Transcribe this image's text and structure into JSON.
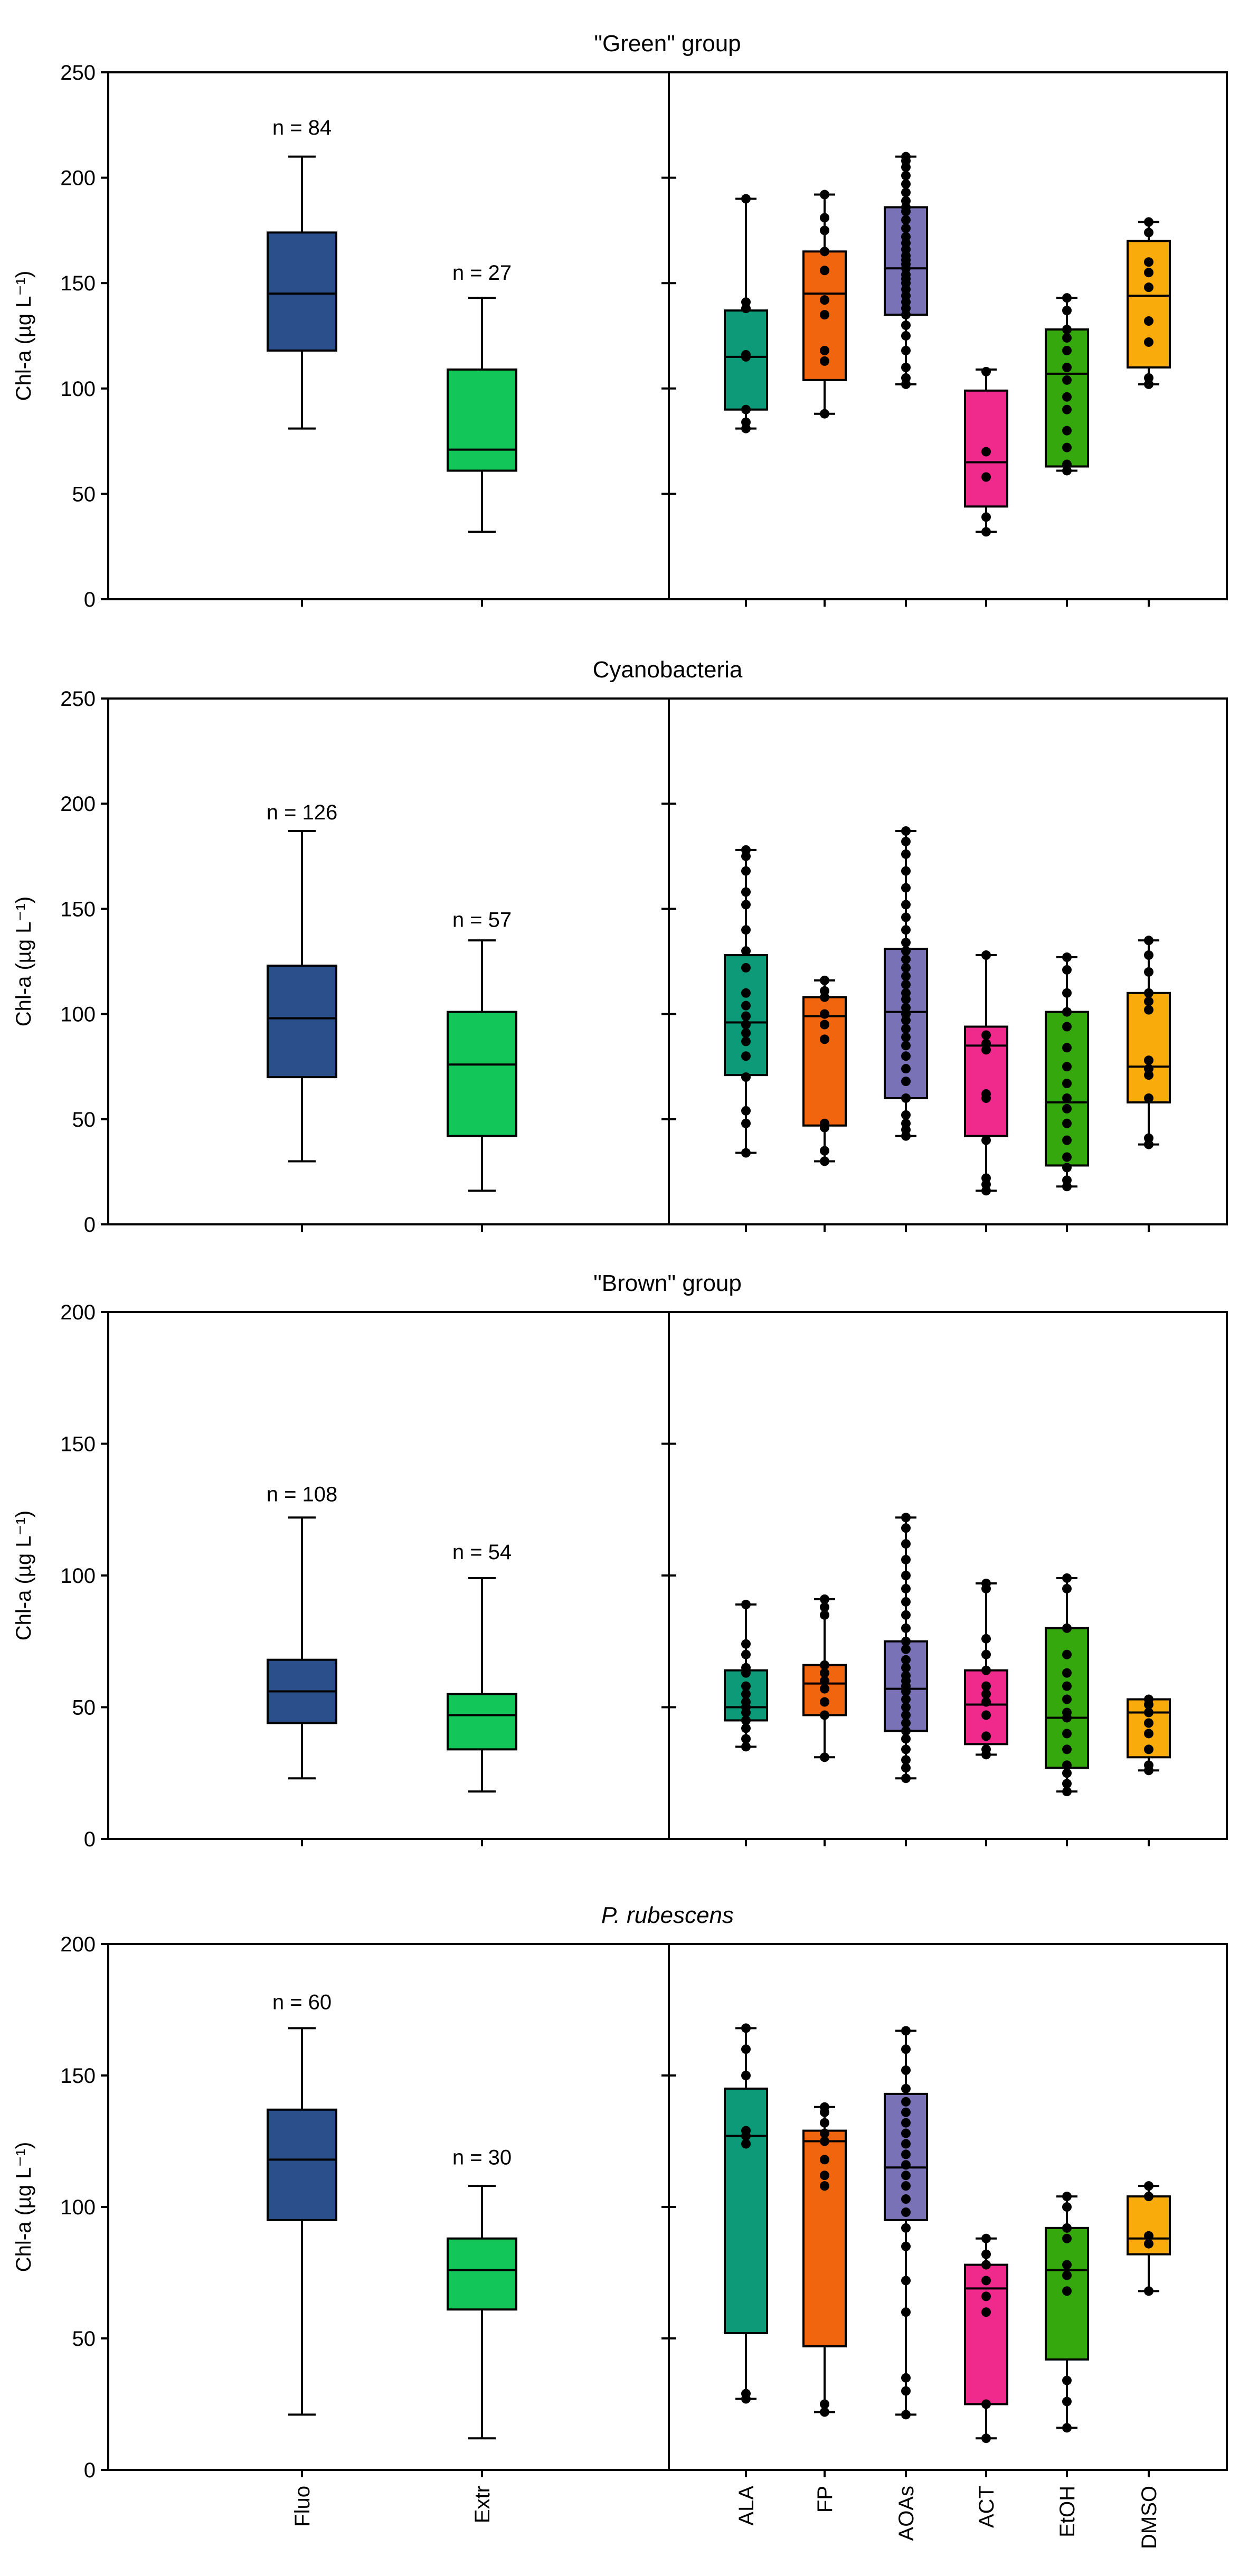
{
  "chart_data": {
    "type": "boxplot",
    "ylabel": "Chl-a (µg L⁻¹)",
    "x_categories_left": [
      "Fluo",
      "Extr"
    ],
    "x_categories_right": [
      "ALA",
      "FP",
      "AOAs",
      "ACT",
      "EtOH",
      "DMSO"
    ],
    "colors": {
      "Fluo": "#2b4f8a",
      "Extr": "#12c65a",
      "ALA": "#0c9a78",
      "FP": "#f2650f",
      "AOAs": "#7a72b6",
      "ACT": "#f02a8c",
      "EtOH": "#35a80d",
      "DMSO": "#f9ab0c"
    },
    "panels": [
      {
        "title": "\"Green\" group",
        "italic": false,
        "ylim": [
          0,
          250
        ],
        "yticks": [
          0,
          50,
          100,
          150,
          200,
          250
        ],
        "summary": [
          {
            "cat": "Fluo",
            "min": 81,
            "q1": 118,
            "median": 145,
            "q3": 174,
            "max": 210,
            "n_label": "n = 84",
            "n_y": 224
          },
          {
            "cat": "Extr",
            "min": 32,
            "q1": 61,
            "median": 71,
            "q3": 109,
            "max": 143,
            "n_label": "n = 27",
            "n_y": 155
          }
        ],
        "methods": [
          {
            "cat": "ALA",
            "min": 81,
            "q1": 90,
            "median": 115,
            "q3": 137,
            "max": 190,
            "points": [
              81,
              84,
              90,
              115,
              116,
              138,
              141,
              190
            ]
          },
          {
            "cat": "FP",
            "min": 88,
            "q1": 104,
            "median": 145,
            "q3": 165,
            "max": 192,
            "points": [
              88,
              113,
              118,
              135,
              142,
              156,
              165,
              175,
              181,
              192
            ]
          },
          {
            "cat": "AOAs",
            "min": 102,
            "q1": 135,
            "median": 157,
            "q3": 186,
            "max": 210,
            "points": [
              102,
              105,
              110,
              118,
              125,
              130,
              135,
              138,
              141,
              144,
              147,
              150,
              152,
              154,
              157,
              159,
              161,
              163,
              166,
              169,
              172,
              176,
              180,
              184,
              186,
              189,
              193,
              197,
              201,
              205,
              208,
              210
            ]
          },
          {
            "cat": "ACT",
            "min": 32,
            "q1": 44,
            "median": 65,
            "q3": 99,
            "max": 109,
            "points": [
              32,
              39,
              58,
              70,
              108
            ]
          },
          {
            "cat": "EtOH",
            "min": 61,
            "q1": 63,
            "median": 107,
            "q3": 128,
            "max": 143,
            "points": [
              61,
              64,
              72,
              80,
              90,
              96,
              104,
              110,
              118,
              124,
              128,
              137,
              143
            ]
          },
          {
            "cat": "DMSO",
            "min": 102,
            "q1": 110,
            "median": 144,
            "q3": 170,
            "max": 179,
            "points": [
              102,
              105,
              122,
              132,
              148,
              155,
              160,
              174,
              179
            ]
          }
        ]
      },
      {
        "title": "Cyanobacteria",
        "italic": false,
        "ylim": [
          0,
          250
        ],
        "yticks": [
          0,
          50,
          100,
          150,
          200,
          250
        ],
        "summary": [
          {
            "cat": "Fluo",
            "min": 30,
            "q1": 70,
            "median": 98,
            "q3": 123,
            "max": 187,
            "n_label": "n = 126",
            "n_y": 196
          },
          {
            "cat": "Extr",
            "min": 16,
            "q1": 42,
            "median": 76,
            "q3": 101,
            "max": 135,
            "n_label": "n = 57",
            "n_y": 145
          }
        ],
        "methods": [
          {
            "cat": "ALA",
            "min": 34,
            "q1": 71,
            "median": 96,
            "q3": 128,
            "max": 178,
            "points": [
              34,
              48,
              54,
              70,
              80,
              87,
              91,
              95,
              99,
              104,
              110,
              122,
              130,
              140,
              152,
              158,
              168,
              175,
              178
            ]
          },
          {
            "cat": "FP",
            "min": 30,
            "q1": 47,
            "median": 99,
            "q3": 108,
            "max": 116,
            "points": [
              30,
              35,
              46,
              48,
              88,
              95,
              100,
              108,
              111,
              116
            ]
          },
          {
            "cat": "AOAs",
            "min": 42,
            "q1": 60,
            "median": 101,
            "q3": 131,
            "max": 187,
            "points": [
              42,
              45,
              48,
              52,
              60,
              68,
              74,
              80,
              85,
              89,
              93,
              97,
              100,
              103,
              107,
              110,
              114,
              118,
              122,
              126,
              130,
              134,
              140,
              146,
              152,
              160,
              168,
              176,
              182,
              187
            ]
          },
          {
            "cat": "ACT",
            "min": 16,
            "q1": 42,
            "median": 85,
            "q3": 94,
            "max": 128,
            "points": [
              16,
              19,
              22,
              40,
              60,
              62,
              83,
              86,
              90,
              128
            ]
          },
          {
            "cat": "EtOH",
            "min": 18,
            "q1": 28,
            "median": 58,
            "q3": 101,
            "max": 127,
            "points": [
              18,
              21,
              27,
              32,
              40,
              48,
              55,
              60,
              67,
              75,
              84,
              94,
              101,
              110,
              121,
              127
            ]
          },
          {
            "cat": "DMSO",
            "min": 38,
            "q1": 58,
            "median": 75,
            "q3": 110,
            "max": 135,
            "points": [
              38,
              41,
              60,
              71,
              74,
              78,
              102,
              106,
              110,
              120,
              128,
              135
            ]
          }
        ]
      },
      {
        "title": "\"Brown\" group",
        "italic": false,
        "ylim": [
          0,
          200
        ],
        "yticks": [
          0,
          50,
          100,
          150,
          200
        ],
        "summary": [
          {
            "cat": "Fluo",
            "min": 23,
            "q1": 44,
            "median": 56,
            "q3": 68,
            "max": 122,
            "n_label": "n = 108",
            "n_y": 131
          },
          {
            "cat": "Extr",
            "min": 18,
            "q1": 34,
            "median": 47,
            "q3": 55,
            "max": 99,
            "n_label": "n = 54",
            "n_y": 109
          }
        ],
        "methods": [
          {
            "cat": "ALA",
            "min": 35,
            "q1": 45,
            "median": 50,
            "q3": 64,
            "max": 89,
            "points": [
              35,
              38,
              42,
              45,
              48,
              50,
              52,
              55,
              58,
              63,
              65,
              70,
              74,
              89
            ]
          },
          {
            "cat": "FP",
            "min": 31,
            "q1": 47,
            "median": 59,
            "q3": 66,
            "max": 91,
            "points": [
              31,
              47,
              52,
              57,
              60,
              63,
              66,
              85,
              88,
              91
            ]
          },
          {
            "cat": "AOAs",
            "min": 23,
            "q1": 41,
            "median": 57,
            "q3": 75,
            "max": 122,
            "points": [
              23,
              27,
              30,
              34,
              38,
              41,
              44,
              47,
              50,
              53,
              56,
              58,
              60,
              62,
              65,
              68,
              72,
              75,
              80,
              85,
              90,
              95,
              100,
              106,
              112,
              118,
              122
            ]
          },
          {
            "cat": "ACT",
            "min": 32,
            "q1": 36,
            "median": 51,
            "q3": 64,
            "max": 97,
            "points": [
              32,
              34,
              39,
              47,
              52,
              55,
              58,
              64,
              70,
              76,
              95,
              97
            ]
          },
          {
            "cat": "EtOH",
            "min": 18,
            "q1": 27,
            "median": 46,
            "q3": 80,
            "max": 99,
            "points": [
              18,
              21,
              25,
              28,
              34,
              40,
              46,
              48,
              53,
              58,
              63,
              70,
              80,
              95,
              99
            ]
          },
          {
            "cat": "DMSO",
            "min": 26,
            "q1": 31,
            "median": 48,
            "q3": 53,
            "max": 53,
            "points": [
              26,
              28,
              34,
              40,
              44,
              48,
              51,
              53
            ]
          }
        ]
      },
      {
        "title": "P. rubescens",
        "italic": true,
        "ylim": [
          0,
          200
        ],
        "yticks": [
          0,
          50,
          100,
          150,
          200
        ],
        "summary": [
          {
            "cat": "Fluo",
            "min": 21,
            "q1": 95,
            "median": 118,
            "q3": 137,
            "max": 168,
            "n_label": "n = 60",
            "n_y": 178
          },
          {
            "cat": "Extr",
            "min": 12,
            "q1": 61,
            "median": 76,
            "q3": 88,
            "max": 108,
            "n_label": "n = 30",
            "n_y": 119
          }
        ],
        "methods": [
          {
            "cat": "ALA",
            "min": 27,
            "q1": 52,
            "median": 127,
            "q3": 145,
            "max": 168,
            "points": [
              27,
              29,
              124,
              127,
              129,
              150,
              160,
              168
            ]
          },
          {
            "cat": "FP",
            "min": 22,
            "q1": 47,
            "median": 125,
            "q3": 129,
            "max": 138,
            "points": [
              22,
              25,
              108,
              112,
              118,
              125,
              128,
              132,
              136,
              138
            ]
          },
          {
            "cat": "AOAs",
            "min": 21,
            "q1": 95,
            "median": 115,
            "q3": 143,
            "max": 167,
            "points": [
              21,
              30,
              35,
              60,
              72,
              85,
              92,
              98,
              103,
              108,
              112,
              116,
              120,
              124,
              128,
              132,
              136,
              140,
              145,
              152,
              160,
              167
            ]
          },
          {
            "cat": "ACT",
            "min": 12,
            "q1": 25,
            "median": 69,
            "q3": 78,
            "max": 88,
            "points": [
              12,
              25,
              60,
              66,
              72,
              78,
              82,
              88
            ]
          },
          {
            "cat": "EtOH",
            "min": 16,
            "q1": 42,
            "median": 76,
            "q3": 92,
            "max": 104,
            "points": [
              16,
              26,
              34,
              68,
              74,
              78,
              88,
              92,
              100,
              104
            ]
          },
          {
            "cat": "DMSO",
            "min": 68,
            "q1": 82,
            "median": 88,
            "q3": 104,
            "max": 108,
            "points": [
              68,
              86,
              89,
              104,
              108
            ]
          }
        ]
      }
    ]
  }
}
